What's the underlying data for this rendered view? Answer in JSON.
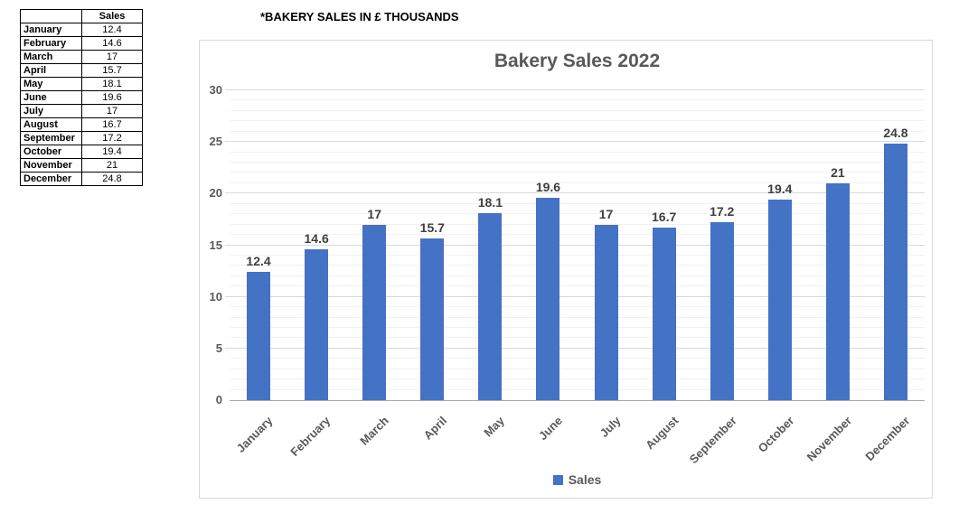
{
  "note": {
    "text": "*BAKERY SALES IN £ THOUSANDS"
  },
  "data_table": {
    "header": [
      "",
      "Sales"
    ],
    "rows": [
      [
        "January",
        "12.4"
      ],
      [
        "February",
        "14.6"
      ],
      [
        "March",
        "17"
      ],
      [
        "April",
        "15.7"
      ],
      [
        "May",
        "18.1"
      ],
      [
        "June",
        "19.6"
      ],
      [
        "July",
        "17"
      ],
      [
        "August",
        "16.7"
      ],
      [
        "September",
        "17.2"
      ],
      [
        "October",
        "19.4"
      ],
      [
        "November",
        "21"
      ],
      [
        "December",
        "24.8"
      ]
    ]
  },
  "chart_data": {
    "type": "bar",
    "title": "Bakery Sales 2022",
    "series_name": "Sales",
    "categories": [
      "January",
      "February",
      "March",
      "April",
      "May",
      "June",
      "July",
      "August",
      "September",
      "October",
      "November",
      "December"
    ],
    "values": [
      12.4,
      14.6,
      17,
      15.7,
      18.1,
      19.6,
      17,
      16.7,
      17.2,
      19.4,
      21,
      24.8
    ],
    "xlabel": "",
    "ylabel": "",
    "ylim": [
      0,
      30
    ],
    "y_major_ticks": [
      0,
      5,
      10,
      15,
      20,
      25,
      30
    ],
    "y_minor_step": 1,
    "grid": true,
    "data_labels": true,
    "legend_position": "bottom"
  },
  "colors": {
    "bar": "#4472C4",
    "title_text": "#595959",
    "axis_label_text": "#595959",
    "data_label_text": "#404040",
    "gridline_major": "#D9D9D9",
    "gridline_minor": "#F1F1F1",
    "axis_line": "#A6A6A6",
    "chart_border": "#D9D9D9"
  }
}
